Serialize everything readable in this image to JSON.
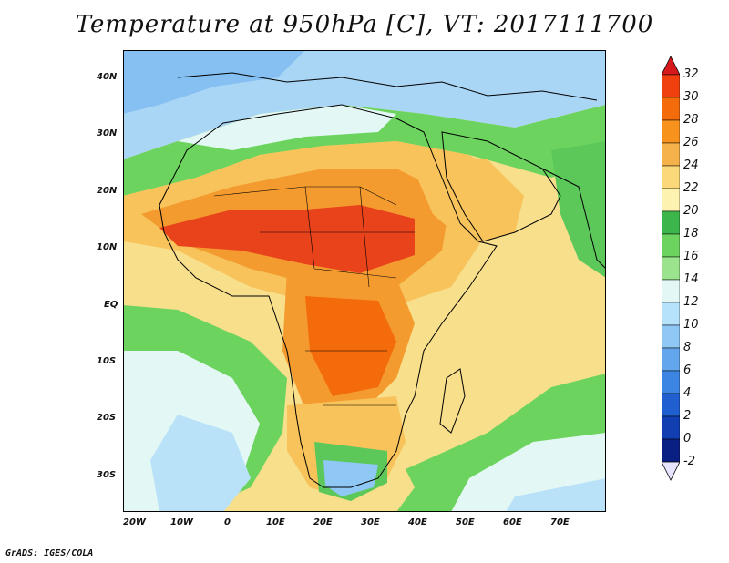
{
  "title": "Temperature at 950hPa [C], VT: 2017111700",
  "credit": "GrADS: IGES/COLA",
  "lat_ticks": [
    "40N",
    "30N",
    "20N",
    "10N",
    "EQ",
    "10S",
    "20S",
    "30S"
  ],
  "lon_ticks": [
    "20W",
    "10W",
    "0",
    "10E",
    "20E",
    "30E",
    "40E",
    "50E",
    "60E",
    "70E"
  ],
  "colorbar": {
    "labels": [
      "32",
      "30",
      "28",
      "26",
      "24",
      "22",
      "20",
      "18",
      "16",
      "14",
      "12",
      "10",
      "8",
      "6",
      "4",
      "2",
      "0",
      "-2"
    ],
    "colors": [
      "#d7191c",
      "#f0400f",
      "#f36b0b",
      "#f7921c",
      "#f6b24a",
      "#fbd97a",
      "#fdf2b0",
      "#3cb54a",
      "#6cd45e",
      "#9be38c",
      "#e3f8f5",
      "#b7e2fb",
      "#8fc7f5",
      "#63a6ee",
      "#3d85e3",
      "#1f5fd0",
      "#113fb2",
      "#0a1f83"
    ],
    "top_arrow_color": "#d7191c",
    "bottom_arrow_color": "#e7e4ff"
  },
  "map_colors": {
    "ocean_warm": "#f8df8c",
    "ocean_cool": "#b9e2f9",
    "ocean_cold": "#86bff1",
    "hot": "#e8431a",
    "warm": "#f49b30",
    "mild": "#f7c35a",
    "green": "#5cc85a",
    "pale": "#e3f8f5",
    "border": "#000000"
  }
}
